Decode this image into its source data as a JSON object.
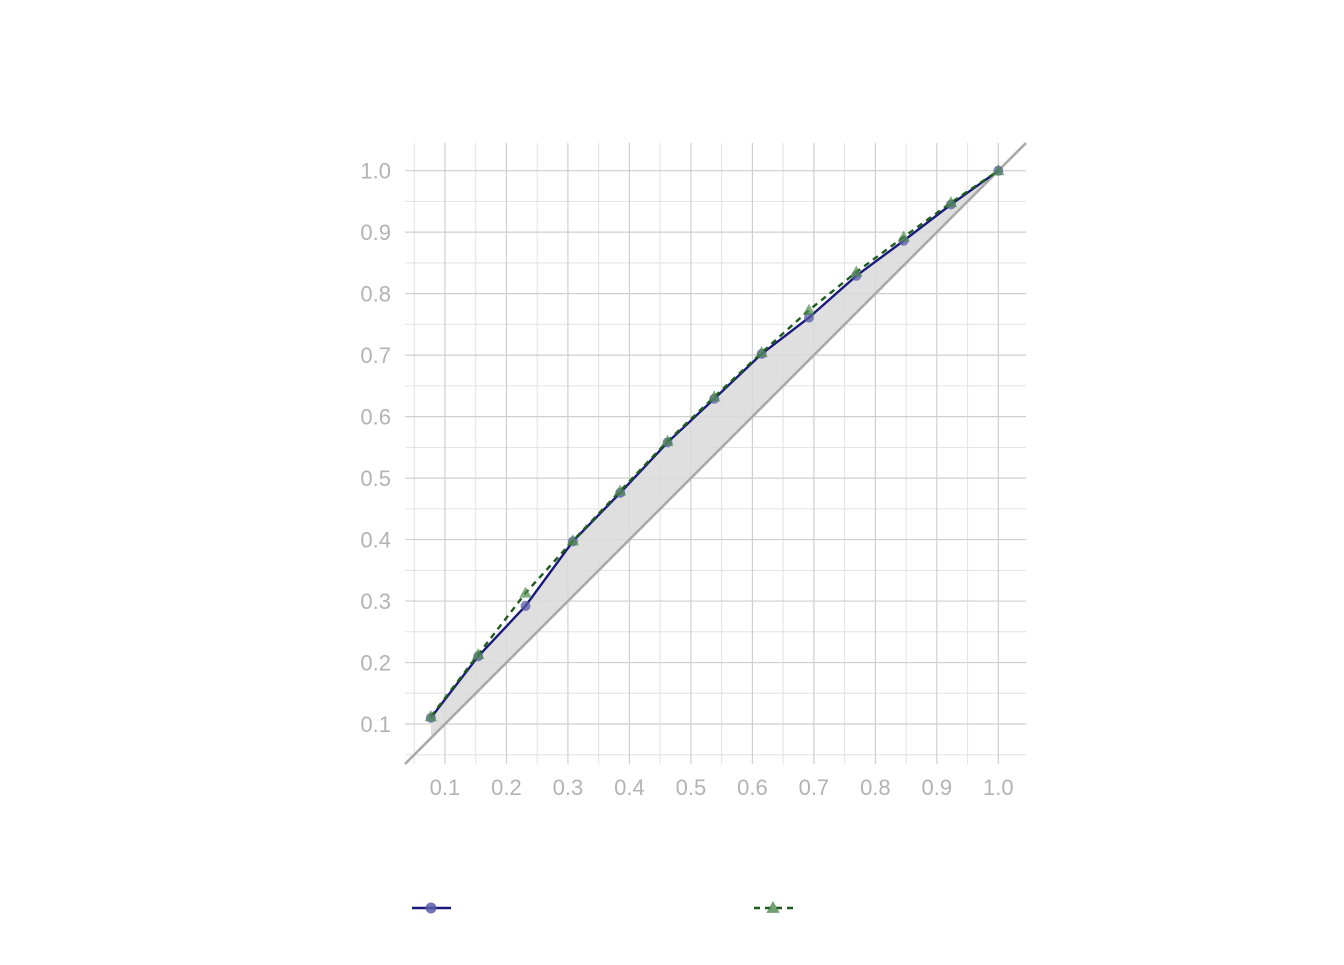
{
  "chart_data": {
    "type": "line",
    "title": "",
    "xlabel": "",
    "ylabel": "",
    "xlim": [
      0.035,
      1.045
    ],
    "ylim": [
      0.035,
      1.045
    ],
    "x_ticks": [
      0.1,
      0.2,
      0.3,
      0.4,
      0.5,
      0.6,
      0.7,
      0.8,
      0.9,
      1.0
    ],
    "y_ticks": [
      0.1,
      0.2,
      0.3,
      0.4,
      0.5,
      0.6,
      0.7,
      0.8,
      0.9,
      1.0
    ],
    "x_tick_labels": [
      "0.1",
      "0.2",
      "0.3",
      "0.4",
      "0.5",
      "0.6",
      "0.7",
      "0.8",
      "0.9",
      "1.0"
    ],
    "y_tick_labels": [
      "0.1",
      "0.2",
      "0.3",
      "0.4",
      "0.5",
      "0.6",
      "0.7",
      "0.8",
      "0.9",
      "1.0"
    ],
    "grid": true,
    "reference_line": "diagonal y = x",
    "shaded_area": "between first series and diagonal",
    "legend_position": "bottom",
    "series": [
      {
        "color": "#1a1a7a",
        "line_style": "solid",
        "marker": "circle",
        "x": [
          0.077,
          0.154,
          0.231,
          0.308,
          0.385,
          0.462,
          0.538,
          0.615,
          0.692,
          0.769,
          0.846,
          0.923,
          1.0
        ],
        "y": [
          0.11,
          0.21,
          0.292,
          0.397,
          0.476,
          0.558,
          0.629,
          0.702,
          0.761,
          0.829,
          0.886,
          0.945,
          1.0
        ]
      },
      {
        "color": "#1f5c1f",
        "line_style": "dashed",
        "marker": "triangle",
        "x": [
          0.077,
          0.154,
          0.231,
          0.308,
          0.385,
          0.462,
          0.538,
          0.615,
          0.692,
          0.769,
          0.846,
          0.923,
          1.0
        ],
        "y": [
          0.112,
          0.213,
          0.313,
          0.398,
          0.479,
          0.56,
          0.632,
          0.704,
          0.773,
          0.835,
          0.892,
          0.948,
          1.0
        ]
      }
    ]
  }
}
